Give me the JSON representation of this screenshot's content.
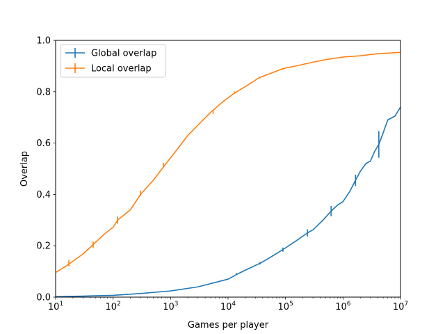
{
  "chart_data": {
    "type": "line",
    "title": "",
    "xlabel": "Games per player",
    "ylabel": "Overlap",
    "xscale": "log",
    "xlim": [
      10,
      10000000
    ],
    "ylim": [
      0.0,
      1.0
    ],
    "grid": false,
    "legend_position": "top-left",
    "x_tick_labels": [
      {
        "base": "10",
        "exp": "1",
        "value": 10
      },
      {
        "base": "10",
        "exp": "2",
        "value": 100
      },
      {
        "base": "10",
        "exp": "3",
        "value": 1000
      },
      {
        "base": "10",
        "exp": "4",
        "value": 10000
      },
      {
        "base": "10",
        "exp": "5",
        "value": 100000
      },
      {
        "base": "10",
        "exp": "6",
        "value": 1000000
      },
      {
        "base": "10",
        "exp": "7",
        "value": 10000000
      }
    ],
    "y_tick_labels": [
      "0.0",
      "0.2",
      "0.4",
      "0.6",
      "0.8",
      "1.0"
    ],
    "series": [
      {
        "name": "Global overlap",
        "color": "#1f77b4",
        "x": [
          10,
          30,
          100,
          300,
          1000,
          3000,
          10000,
          14000,
          20000,
          36000,
          50000,
          90000,
          150000,
          240000,
          300000,
          450000,
          620000,
          800000,
          1000000,
          1300000,
          1650000,
          2000000,
          2500000,
          3000000,
          3500000,
          4200000,
          5000000,
          6000000,
          8000000,
          10000000
        ],
        "y": [
          0.002,
          0.004,
          0.007,
          0.014,
          0.024,
          0.04,
          0.07,
          0.088,
          0.105,
          0.132,
          0.15,
          0.185,
          0.218,
          0.25,
          0.262,
          0.3,
          0.335,
          0.358,
          0.372,
          0.41,
          0.455,
          0.49,
          0.52,
          0.53,
          0.565,
          0.595,
          0.64,
          0.69,
          0.705,
          0.74
        ],
        "error_bars": [
          {
            "x": 14000,
            "y": 0.09,
            "err": 0.004
          },
          {
            "x": 36000,
            "y": 0.132,
            "err": 0.005
          },
          {
            "x": 90000,
            "y": 0.185,
            "err": 0.008
          },
          {
            "x": 240000,
            "y": 0.25,
            "err": 0.014
          },
          {
            "x": 620000,
            "y": 0.335,
            "err": 0.02
          },
          {
            "x": 1650000,
            "y": 0.455,
            "err": 0.022
          },
          {
            "x": 4200000,
            "y": 0.595,
            "err": 0.052
          }
        ]
      },
      {
        "name": "Local overlap",
        "color": "#ff7f0e",
        "x": [
          10,
          15,
          20,
          30,
          45,
          70,
          100,
          120,
          200,
          300,
          500,
          800,
          1200,
          2000,
          3000,
          5000,
          8000,
          13000,
          20000,
          35000,
          50000,
          90000,
          150000,
          300000,
          500000,
          1000000,
          2000000,
          4000000,
          10000000
        ],
        "y": [
          0.096,
          0.12,
          0.14,
          0.168,
          0.205,
          0.245,
          0.272,
          0.3,
          0.34,
          0.4,
          0.455,
          0.515,
          0.565,
          0.63,
          0.67,
          0.72,
          0.76,
          0.795,
          0.82,
          0.855,
          0.868,
          0.89,
          0.9,
          0.915,
          0.925,
          0.935,
          0.94,
          0.948,
          0.953
        ],
        "error_bars": [
          {
            "x": 17,
            "y": 0.132,
            "err": 0.012
          },
          {
            "x": 45,
            "y": 0.205,
            "err": 0.012
          },
          {
            "x": 120,
            "y": 0.3,
            "err": 0.014
          },
          {
            "x": 300,
            "y": 0.405,
            "err": 0.01
          },
          {
            "x": 750,
            "y": 0.515,
            "err": 0.008
          },
          {
            "x": 5500,
            "y": 0.72,
            "err": 0.006
          },
          {
            "x": 13000,
            "y": 0.797,
            "err": 0.004
          },
          {
            "x": 36000,
            "y": 0.855,
            "err": 0.003
          },
          {
            "x": 90000,
            "y": 0.889,
            "err": 0.003
          }
        ]
      }
    ]
  }
}
